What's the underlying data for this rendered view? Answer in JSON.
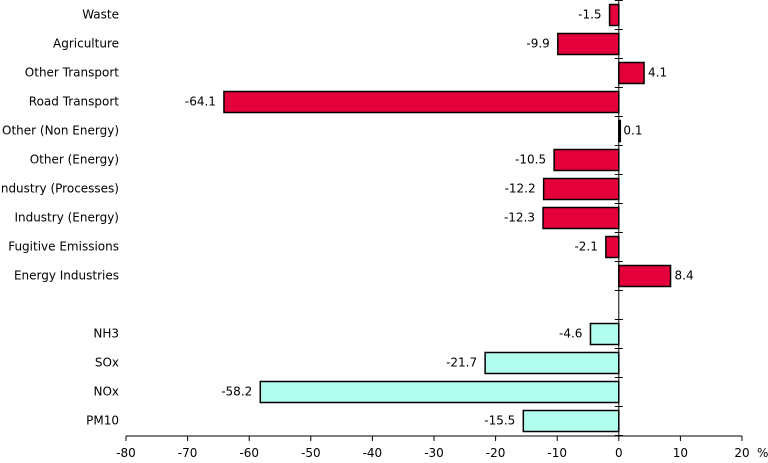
{
  "chart_data": {
    "type": "bar",
    "orientation": "horizontal",
    "unit": "%",
    "xlim": [
      -80,
      20
    ],
    "x_ticks": [
      -80,
      -70,
      -60,
      -50,
      -40,
      -30,
      -20,
      -10,
      0,
      10,
      20
    ],
    "grid": false,
    "groups": [
      {
        "color": "#e4003a",
        "categories": [
          "Waste",
          "Agriculture",
          "Other Transport",
          "Road Transport",
          "Other (Non Energy)",
          "Other (Energy)",
          "Industry (Processes)",
          "Industry (Energy)",
          "Fugitive Emissions",
          "Energy Industries"
        ],
        "values": [
          -1.5,
          -9.9,
          4.1,
          -64.1,
          0.1,
          -10.5,
          -12.2,
          -12.3,
          -2.1,
          8.4
        ]
      },
      {
        "color": "#b3ffef",
        "categories": [
          "NH3",
          "SOx",
          "NOx",
          "PM10"
        ],
        "values": [
          -4.6,
          -21.7,
          -58.2,
          -15.5
        ]
      }
    ]
  }
}
